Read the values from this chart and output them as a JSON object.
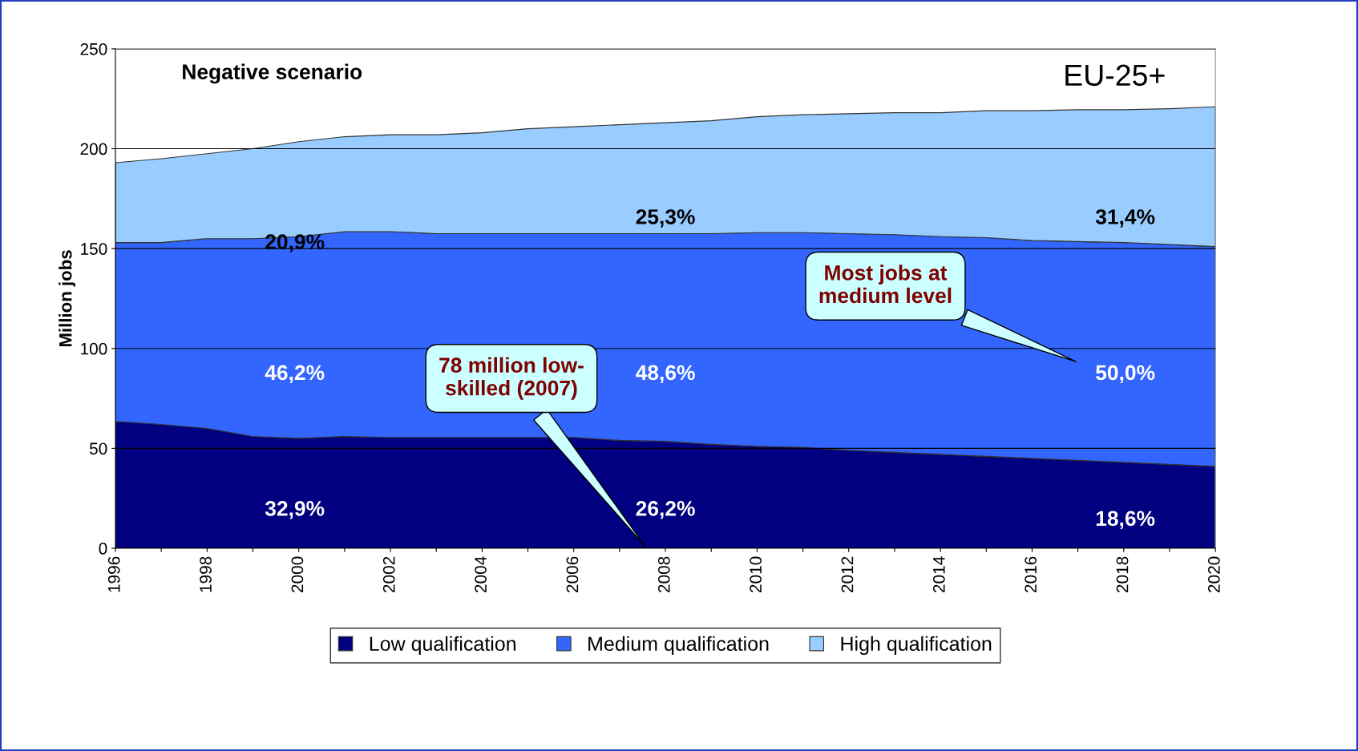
{
  "chart_data": {
    "type": "area",
    "stacked": true,
    "title": "Negative scenario",
    "subtitle": "EU-25+",
    "ylabel": "Million jobs",
    "x": [
      1996,
      1997,
      1998,
      1999,
      2000,
      2001,
      2002,
      2003,
      2004,
      2005,
      2006,
      2007,
      2008,
      2009,
      2010,
      2011,
      2012,
      2013,
      2014,
      2015,
      2016,
      2017,
      2018,
      2019,
      2020
    ],
    "series": [
      {
        "name": "Low qualification",
        "color": "#000080",
        "values": [
          63.5,
          62,
          60,
          56,
          55,
          56,
          55.5,
          55.5,
          55.5,
          55.5,
          55.5,
          54,
          53.5,
          52,
          51,
          50.5,
          49,
          48,
          47,
          46,
          45,
          44,
          43,
          42,
          41
        ]
      },
      {
        "name": "Medium qualification",
        "color": "#3366ff",
        "values": [
          89.5,
          91,
          95,
          99,
          101,
          102.5,
          103,
          102,
          102,
          102,
          102,
          103.5,
          104,
          105.5,
          107,
          107.5,
          108.5,
          109,
          109,
          109.5,
          109,
          109.5,
          110,
          110,
          110
        ]
      },
      {
        "name": "High qualification",
        "color": "#99ccff",
        "values": [
          40,
          42,
          42.5,
          45,
          47.5,
          47.5,
          48.5,
          49.5,
          50.5,
          52.5,
          53.5,
          54.5,
          55.5,
          56.5,
          58,
          59,
          60,
          61,
          62,
          63.5,
          65,
          66,
          66.5,
          68,
          70
        ]
      }
    ],
    "xlim": [
      1996,
      2020
    ],
    "xticks": [
      1996,
      {
        "value": 1997,
        "label": null
      },
      1998,
      {
        "value": 1999,
        "label": null
      },
      2000,
      {
        "value": 2001,
        "label": null
      },
      2002,
      {
        "value": 2003,
        "label": null
      },
      2004,
      {
        "value": 2005,
        "label": null
      },
      2006,
      {
        "value": 2007,
        "label": null
      },
      2008,
      {
        "value": 2009,
        "label": null
      },
      2010,
      {
        "value": 2011,
        "label": null
      },
      2012,
      {
        "value": 2013,
        "label": null
      },
      2014,
      {
        "value": 2015,
        "label": null
      },
      2016,
      {
        "value": 2017,
        "label": null
      },
      2018,
      {
        "value": 2019,
        "label": null
      },
      2020
    ],
    "ylim": [
      0,
      250
    ],
    "yticks": [
      0,
      50,
      100,
      150,
      200,
      250
    ],
    "grid": "y",
    "legend": "bottom",
    "annotations": [
      "20,9%",
      "25,3%",
      "31,4%",
      "46,2%",
      "48,6%",
      "50,0%",
      "32,9%",
      "26,2%",
      "18,6%",
      "Most jobs at\nmedium level",
      "78 million low-\nskilled (2007)"
    ]
  }
}
